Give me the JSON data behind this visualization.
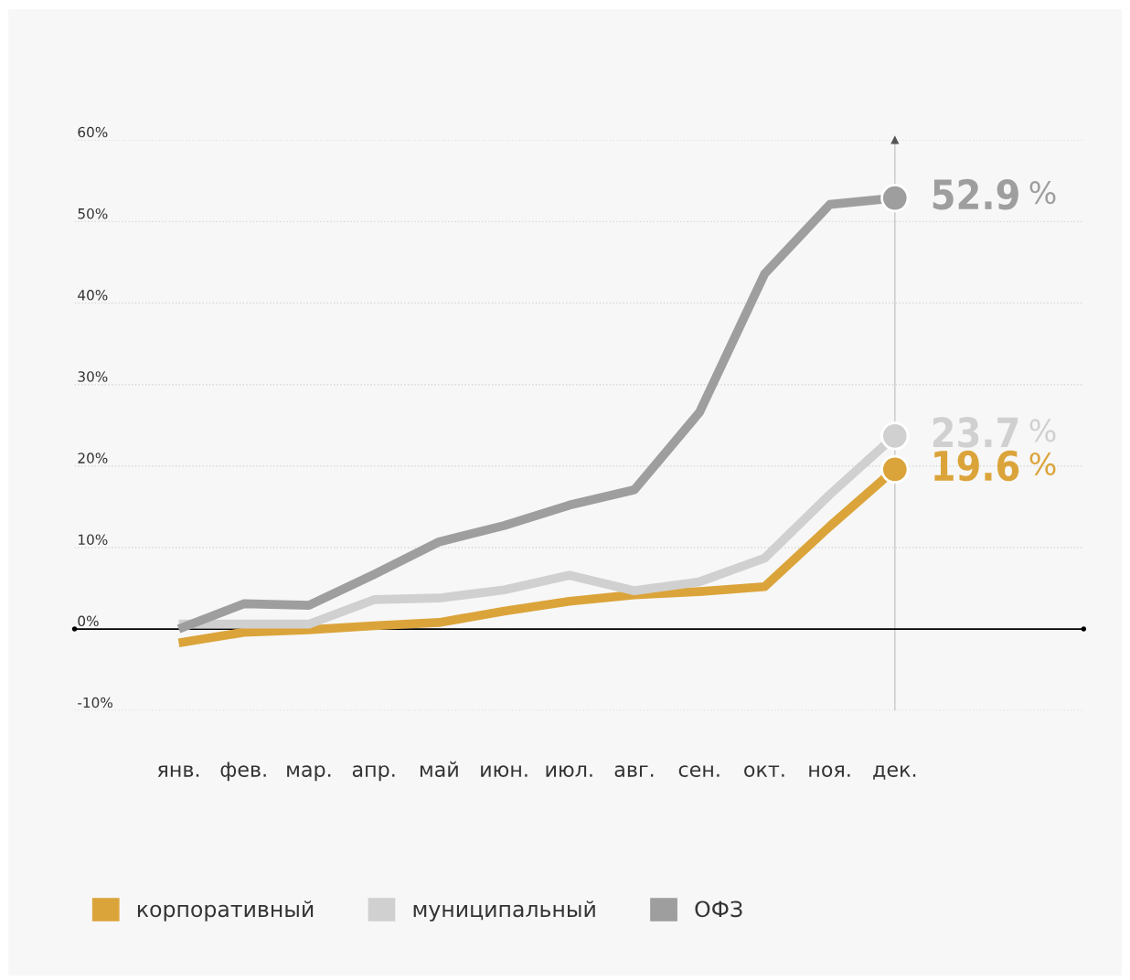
{
  "chart_data": {
    "type": "line",
    "categories": [
      "янв.",
      "фев.",
      "мар.",
      "апр.",
      "май",
      "июн.",
      "июл.",
      "авг.",
      "сен.",
      "окт.",
      "ноя.",
      "дек."
    ],
    "series": [
      {
        "name": "корпоративный",
        "color": "#dba43a",
        "values": [
          -1.7,
          -0.4,
          -0.1,
          0.4,
          0.8,
          2.2,
          3.4,
          4.2,
          4.6,
          5.2,
          12.6,
          19.6
        ],
        "value_labels": [
          null,
          null,
          null,
          null,
          null,
          null,
          null,
          null,
          null,
          null,
          null,
          "19.6 %"
        ]
      },
      {
        "name": "муниципальный",
        "color": "#d0d0d0",
        "values": [
          0.6,
          0.6,
          0.6,
          3.6,
          3.8,
          4.8,
          6.6,
          4.7,
          5.8,
          8.7,
          16.5,
          23.7
        ],
        "value_labels": [
          null,
          null,
          null,
          null,
          null,
          null,
          null,
          null,
          null,
          null,
          null,
          "23.7 %"
        ]
      },
      {
        "name": "ОФЗ",
        "color": "#9e9e9e",
        "values": [
          0.0,
          3.1,
          2.9,
          6.7,
          10.7,
          12.7,
          15.2,
          17.1,
          26.6,
          43.6,
          52.1,
          52.9
        ],
        "value_labels": [
          null,
          null,
          null,
          null,
          null,
          null,
          null,
          null,
          null,
          null,
          null,
          "52.9 %"
        ]
      }
    ],
    "ylim": [
      -10,
      60
    ],
    "yticks": [
      {
        "value": -10,
        "label": "-10%"
      },
      {
        "value": 0,
        "label": "0%"
      },
      {
        "value": 10,
        "label": "10%"
      },
      {
        "value": 20,
        "label": "20%"
      },
      {
        "value": 30,
        "label": "30%"
      },
      {
        "value": 40,
        "label": "40%"
      },
      {
        "value": 50,
        "label": "50%"
      },
      {
        "value": 60,
        "label": "60%"
      }
    ],
    "ref_lines": [
      {
        "axis": "y",
        "value": 0,
        "color": "#000000"
      },
      {
        "axis": "x",
        "value": "дек.",
        "color": "#c8c8c8"
      }
    ],
    "grid": "y",
    "legend": "bottom left",
    "line_style": "solid",
    "marker": "none"
  }
}
